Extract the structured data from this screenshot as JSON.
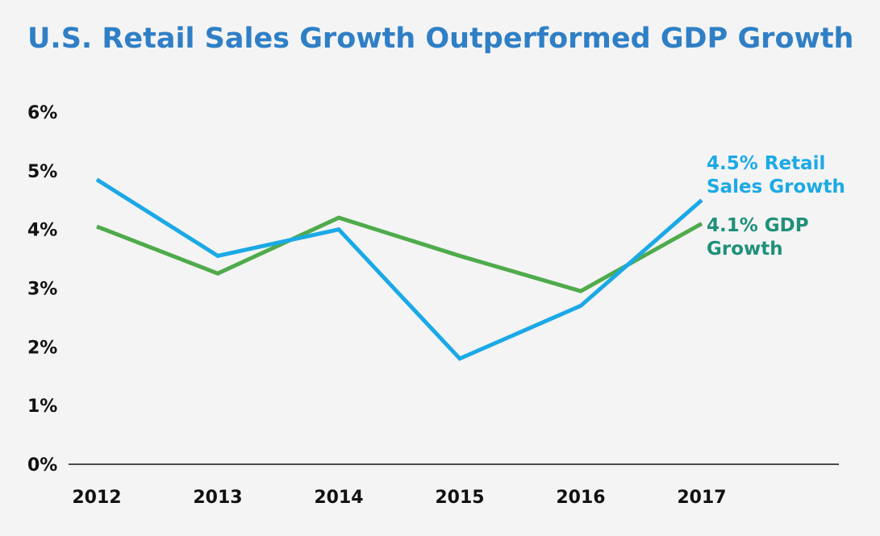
{
  "chart_data": {
    "type": "line",
    "title": "U.S. Retail Sales Growth Outperformed GDP Growth",
    "xlabel": "",
    "ylabel": "",
    "categories": [
      "2012",
      "2013",
      "2014",
      "2015",
      "2016",
      "2017"
    ],
    "y_ticks": [
      "0%",
      "1%",
      "2%",
      "3%",
      "4%",
      "5%",
      "6%"
    ],
    "ylim": [
      0,
      6
    ],
    "grid": false,
    "series": [
      {
        "key": "retail",
        "values": [
          4.85,
          3.55,
          4.0,
          1.8,
          2.7,
          4.5
        ],
        "color": "#1ba9e6",
        "annotation": [
          "4.5% Retail",
          "Sales Growth"
        ]
      },
      {
        "key": "gdp",
        "values": [
          4.05,
          3.25,
          4.2,
          3.55,
          2.95,
          4.1
        ],
        "color": "#4fab4c",
        "annotation": [
          "4.1% GDP",
          "Growth"
        ],
        "annotation_color": "#1f9079"
      }
    ]
  }
}
